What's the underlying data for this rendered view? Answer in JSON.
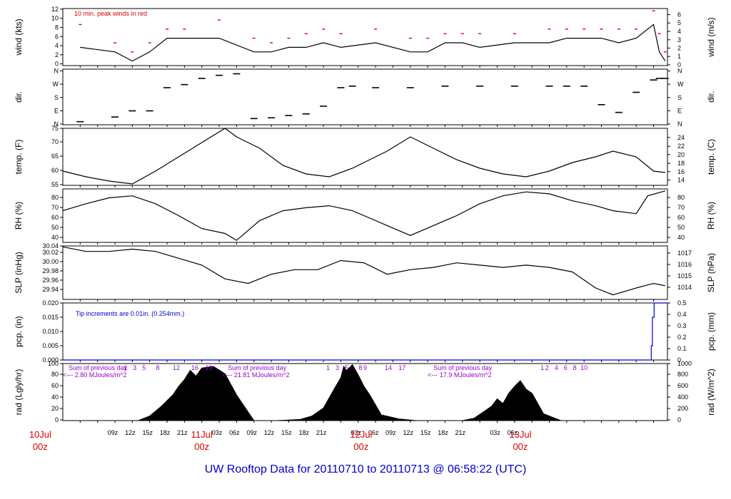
{
  "title": "UW Rooftop Data for 20110710  to  20110713 @ 06:58:22  (UTC)",
  "x_axis": {
    "hour_labels": [
      "09z",
      "12z",
      "15z",
      "18z",
      "21z",
      "03z",
      "06z",
      "09z",
      "12z",
      "15z",
      "18z",
      "21z",
      "03z",
      "06z",
      "09z",
      "12z",
      "15z",
      "18z",
      "21z",
      "03z",
      "06z"
    ],
    "day_labels": [
      {
        "date": "10Jul",
        "time": "00z"
      },
      {
        "date": "11Jul",
        "time": "00z"
      },
      {
        "date": "12Jul",
        "time": "00z"
      },
      {
        "date": "13Jul",
        "time": "00z"
      }
    ]
  },
  "chart_data": [
    {
      "type": "line",
      "name": "wind",
      "ylabel_left": "wind (kts)",
      "ylabel_right": "wind (m/s)",
      "ylim": [
        0,
        12.5
      ],
      "left_ticks": [
        "0",
        "2",
        "4",
        "6",
        "8",
        "10",
        "12"
      ],
      "right_ticks": [
        "0",
        "1",
        "2",
        "3",
        "4",
        "5",
        "6"
      ],
      "annotation": "10 min. peak winds in red",
      "series": [
        {
          "name": "wind speed (kts)",
          "color": "#000000",
          "x_hours": [
            3,
            9,
            12,
            15,
            18,
            21,
            27,
            33,
            36,
            39,
            42,
            45,
            48,
            54,
            60,
            63,
            66,
            69,
            72,
            78,
            84,
            87,
            90,
            93,
            96,
            99,
            102,
            103,
            104
          ],
          "values": [
            4,
            3,
            1,
            3,
            6,
            6,
            6,
            3,
            3,
            4,
            4,
            5,
            4,
            5,
            3,
            3,
            5,
            5,
            4,
            5,
            5,
            6,
            6,
            6,
            5,
            6,
            9,
            3,
            1
          ]
        },
        {
          "name": "10 min. peak winds",
          "color": "#dd0000",
          "x_hours": [
            3,
            9,
            12,
            15,
            18,
            21,
            27,
            33,
            36,
            39,
            42,
            45,
            48,
            54,
            60,
            63,
            66,
            69,
            72,
            78,
            84,
            87,
            90,
            93,
            96,
            99,
            102,
            103,
            104
          ],
          "values": [
            9,
            5,
            3,
            5,
            8,
            8,
            10,
            6,
            5,
            6,
            7,
            8,
            7,
            8,
            6,
            6,
            7,
            7,
            7,
            7,
            8,
            8,
            8,
            8,
            8,
            8,
            12,
            7,
            3
          ]
        }
      ]
    },
    {
      "type": "scatter",
      "name": "dir.",
      "ylabel_left": "dir.",
      "ylabel_right": "dir.",
      "ylim": [
        0,
        360
      ],
      "left_ticks": [
        "N",
        "E",
        "S",
        "W",
        "N"
      ],
      "right_ticks": [
        "N",
        "E",
        "S",
        "W",
        "N"
      ],
      "series": [
        {
          "name": "wind direction",
          "x_hours": [
            3,
            9,
            12,
            15,
            18,
            21,
            24,
            27,
            30,
            33,
            36,
            39,
            42,
            45,
            48,
            50,
            54,
            60,
            66,
            72,
            78,
            84,
            87,
            90,
            93,
            96,
            99,
            102,
            103,
            104
          ],
          "values": [
            20,
            50,
            90,
            90,
            240,
            260,
            300,
            320,
            330,
            40,
            45,
            60,
            70,
            120,
            240,
            250,
            240,
            240,
            250,
            250,
            250,
            250,
            250,
            250,
            130,
            80,
            210,
            290,
            300,
            300
          ]
        }
      ]
    },
    {
      "type": "line",
      "name": "temp.",
      "ylabel_left": "temp. (F)",
      "ylabel_right": "temp. (C)",
      "ylim": [
        55,
        75
      ],
      "left_ticks": [
        "55",
        "60",
        "65",
        "70",
        "75"
      ],
      "right_ticks": [
        "14",
        "16",
        "18",
        "20",
        "22",
        "24"
      ],
      "series": [
        {
          "name": "temperature (F)",
          "x_hours": [
            0,
            4,
            8,
            12,
            16,
            20,
            24,
            28,
            30,
            34,
            38,
            42,
            46,
            50,
            52,
            56,
            60,
            64,
            68,
            72,
            76,
            80,
            84,
            88,
            92,
            95,
            99,
            102,
            104
          ],
          "values": [
            60,
            58,
            56.5,
            55.5,
            60,
            65,
            70,
            75,
            72,
            68,
            62,
            59,
            58,
            61,
            63,
            67,
            72,
            68,
            64,
            61,
            59,
            58,
            60,
            63,
            65,
            67,
            65,
            60,
            59.5
          ]
        }
      ]
    },
    {
      "type": "line",
      "name": "RH",
      "ylabel_left": "RH (%)",
      "ylabel_right": "RH (%)",
      "ylim": [
        33,
        87
      ],
      "left_ticks": [
        "40",
        "50",
        "60",
        "70",
        "80"
      ],
      "right_ticks": [
        "40",
        "50",
        "60",
        "70",
        "80"
      ],
      "series": [
        {
          "name": "relative humidity (%)",
          "x_hours": [
            0,
            4,
            8,
            12,
            16,
            20,
            24,
            28,
            30,
            34,
            38,
            42,
            46,
            50,
            52,
            56,
            60,
            64,
            68,
            72,
            76,
            80,
            84,
            88,
            92,
            95,
            99,
            101,
            104
          ],
          "values": [
            65,
            72,
            78,
            80,
            72,
            60,
            47,
            42,
            35,
            55,
            65,
            68,
            70,
            65,
            60,
            50,
            40,
            50,
            60,
            72,
            80,
            84,
            82,
            75,
            70,
            65,
            62,
            80,
            85
          ]
        }
      ]
    },
    {
      "type": "line",
      "name": "SLP",
      "ylabel_left": "SLP (inHg)",
      "ylabel_right": "SLP (hPa)",
      "ylim": [
        29.925,
        30.042
      ],
      "left_ticks": [
        "29.94",
        "29.96",
        "29.98",
        "30.00",
        "30.02",
        "30.04"
      ],
      "right_ticks": [
        "1014",
        "1015",
        "1016",
        "1017"
      ],
      "series": [
        {
          "name": "sea level pressure (inHg)",
          "x_hours": [
            0,
            4,
            8,
            12,
            16,
            20,
            24,
            28,
            32,
            36,
            40,
            44,
            48,
            52,
            56,
            60,
            64,
            68,
            72,
            76,
            80,
            84,
            88,
            92,
            95,
            99,
            102,
            104
          ],
          "values": [
            30.04,
            30.03,
            30.03,
            30.035,
            30.03,
            30.015,
            30.0,
            29.97,
            29.96,
            29.98,
            29.99,
            29.99,
            30.01,
            30.005,
            29.98,
            29.99,
            29.995,
            30.005,
            30.0,
            29.995,
            30.0,
            29.995,
            29.985,
            29.95,
            29.935,
            29.95,
            29.96,
            29.955
          ]
        }
      ]
    },
    {
      "type": "line",
      "name": "pcp.",
      "ylabel_left": "pcp. (in)",
      "ylabel_right": "pcp. (mm)",
      "ylim": [
        0,
        0.02
      ],
      "left_ticks": [
        "0.000",
        "0.005",
        "0.010",
        "0.015",
        "0.020"
      ],
      "right_ticks": [
        "0",
        "0.1",
        "0.2",
        "0.3",
        "0.4",
        "0.5"
      ],
      "annotation": "Tip increments are 0.01in. (0.254mm.)",
      "series": [
        {
          "name": "precipitation (in)",
          "x_hours": [
            0,
            101.6,
            101.6,
            101.8,
            101.8,
            102.1,
            102.1,
            104.4
          ],
          "values": [
            0,
            0,
            0.005,
            0.005,
            0.015,
            0.015,
            0.02,
            0.02
          ]
        }
      ]
    },
    {
      "type": "area",
      "name": "rad",
      "ylabel_left": "rad (Lgly/hr)",
      "ylabel_right": "rad (W/m^2)",
      "ylim": [
        0,
        100
      ],
      "left_ticks": [
        "0",
        "20",
        "40",
        "60",
        "80",
        "100"
      ],
      "right_ticks": [
        "0",
        "200",
        "400",
        "600",
        "800",
        "1000"
      ],
      "sum_label": "Sum of previous day",
      "daily_sums": [
        "<--- 2.80 MJoules/m^2",
        "<--- 21.81 MJoules/m^2",
        "<--- 17.9 MJoules/m^2"
      ],
      "hour_markers": [
        [
          "1",
          "3",
          "5",
          "8",
          "12",
          "16",
          "19"
        ],
        [
          "1",
          "3",
          "5",
          "8",
          "9",
          "14",
          "17"
        ],
        [
          "1",
          "2",
          "4",
          "6",
          "8",
          "10"
        ]
      ],
      "series": [
        {
          "name": "solar radiation (Lgly/hr)",
          "x_hours": [
            0,
            13,
            15,
            17,
            19,
            20,
            21,
            22,
            23,
            24,
            26,
            28,
            30,
            33,
            37,
            41,
            43,
            45,
            46,
            47,
            48,
            48.5,
            49,
            50,
            51,
            52,
            53,
            55,
            58,
            61,
            66,
            69,
            71,
            73,
            74,
            75,
            76,
            77,
            78,
            79,
            80,
            81,
            83,
            86,
            104.4
          ],
          "values": [
            0,
            0,
            8,
            25,
            45,
            60,
            72,
            88,
            78,
            92,
            95,
            82,
            45,
            0,
            0,
            2,
            8,
            22,
            40,
            58,
            75,
            95,
            88,
            98,
            80,
            60,
            45,
            10,
            3,
            0,
            0,
            0,
            4,
            18,
            25,
            38,
            30,
            48,
            60,
            70,
            55,
            48,
            12,
            0,
            0
          ]
        }
      ]
    }
  ]
}
